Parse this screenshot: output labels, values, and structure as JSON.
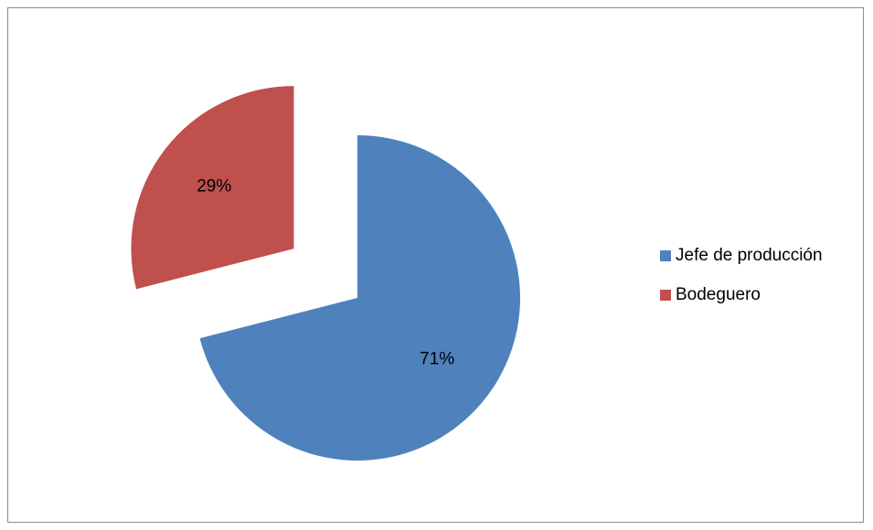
{
  "chart_data": {
    "type": "pie",
    "title": "",
    "legend_position": "right",
    "slices": [
      {
        "label": "Jefe de producción",
        "value": 71,
        "display": "71%",
        "color": "#4f81bd",
        "exploded": false
      },
      {
        "label": "Bodeguero",
        "value": 29,
        "display": "29%",
        "color": "#c0504d",
        "exploded": true
      }
    ]
  }
}
